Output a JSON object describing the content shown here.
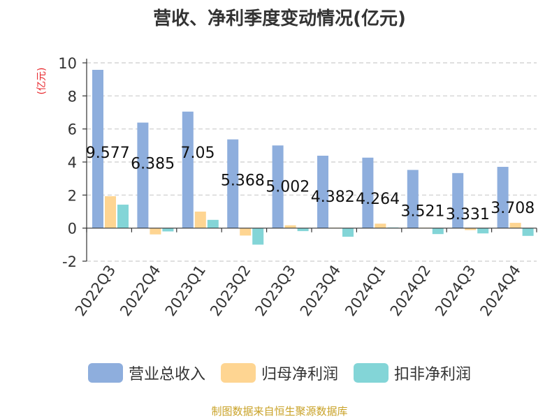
{
  "chart_data": {
    "type": "bar",
    "title": "营收、净利季度变动情况(亿元)",
    "ylabel": "(亿元)",
    "ylim": [
      -2,
      10
    ],
    "yticks": [
      -2,
      0,
      2,
      4,
      6,
      8,
      10
    ],
    "grid": true,
    "legend_position": "bottom",
    "categories": [
      "2022Q3",
      "2022Q4",
      "2023Q1",
      "2023Q2",
      "2023Q3",
      "2023Q4",
      "2024Q1",
      "2024Q2",
      "2024Q3",
      "2024Q4"
    ],
    "series": [
      {
        "name": "营业总收入",
        "color": "#8eaedd",
        "values": [
          9.577,
          6.385,
          7.05,
          5.368,
          5.002,
          4.382,
          4.264,
          3.521,
          3.331,
          3.708
        ],
        "data_labels": [
          "9.577",
          "6.385",
          "7.05",
          "5.368",
          "5.002",
          "4.382",
          "4.264",
          "3.521",
          "3.331",
          "3.708"
        ]
      },
      {
        "name": "归母净利润",
        "color": "#fed592",
        "values": [
          1.93,
          -0.38,
          1.0,
          -0.45,
          0.17,
          0.03,
          0.27,
          0.03,
          -0.12,
          0.32
        ]
      },
      {
        "name": "扣非净利润",
        "color": "#83d5d7",
        "values": [
          1.42,
          -0.2,
          0.5,
          -1.0,
          -0.18,
          -0.52,
          0.04,
          -0.36,
          -0.32,
          -0.47
        ]
      }
    ]
  },
  "source_note": "制图数据来自恒生聚源数据库"
}
